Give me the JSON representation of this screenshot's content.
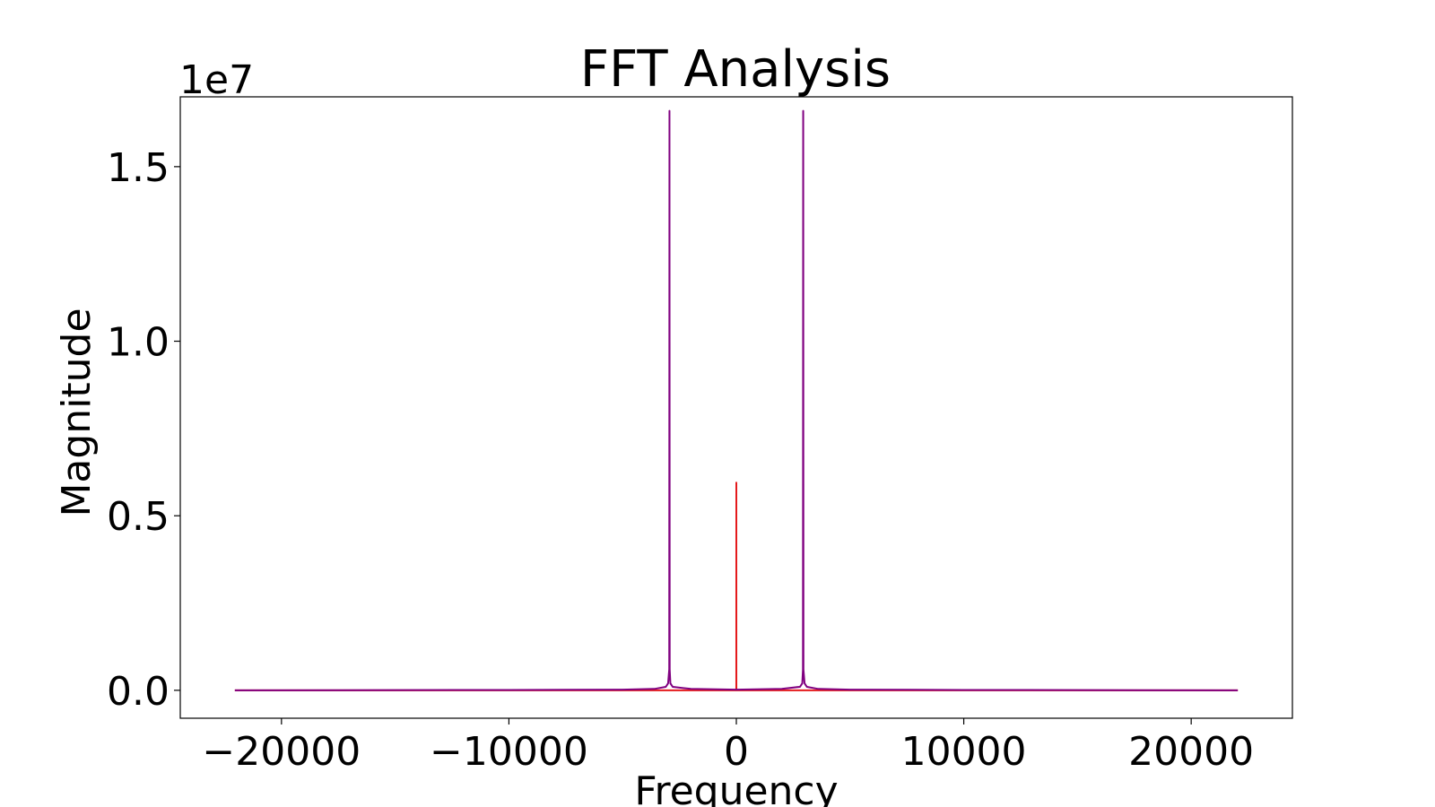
{
  "chart_data": {
    "type": "line",
    "title": "FFT Analysis",
    "xlabel": "Frequency",
    "ylabel": "Magnitude",
    "y_offset_text": "1e7",
    "xlim": [
      -24450,
      24450
    ],
    "ylim": [
      -0.08,
      1.7
    ],
    "y_scale_multiplier": 10000000,
    "x_ticks": [
      -20000,
      -10000,
      0,
      10000,
      20000
    ],
    "x_tick_labels": [
      "−20000",
      "−10000",
      "0",
      "10000",
      "20000"
    ],
    "y_ticks": [
      0.0,
      0.5,
      1.0,
      1.5
    ],
    "y_tick_labels": [
      "0.0",
      "0.5",
      "1.0",
      "1.5"
    ],
    "grid": false,
    "series": [
      {
        "color": "#e41a1c",
        "x": [
          -22050,
          -1,
          0,
          1,
          22050
        ],
        "y": [
          0.0,
          0.0,
          0.595,
          0.0,
          0.0
        ]
      },
      {
        "color": "#800080",
        "x": [
          -22050,
          -10000,
          -5000,
          -3600,
          -3100,
          -3000,
          -2950,
          -2940,
          -2930,
          -2900,
          -2800,
          -2000,
          0,
          2000,
          2800,
          2900,
          2930,
          2940,
          2950,
          3000,
          3100,
          3600,
          5000,
          10000,
          22050
        ],
        "y": [
          0.0,
          0.001,
          0.002,
          0.004,
          0.01,
          0.02,
          0.06,
          1.66,
          0.06,
          0.02,
          0.01,
          0.004,
          0.002,
          0.004,
          0.01,
          0.02,
          0.06,
          1.66,
          0.06,
          0.02,
          0.01,
          0.004,
          0.002,
          0.001,
          0.0
        ]
      }
    ]
  }
}
